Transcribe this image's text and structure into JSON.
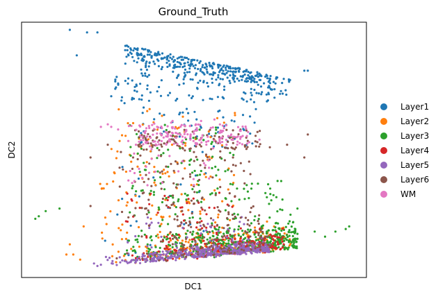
{
  "chart_data": {
    "type": "scatter",
    "title": "Ground_Truth",
    "xlabel": "DC1",
    "ylabel": "DC2",
    "grid": false,
    "show_ticks": false,
    "legend_position": "right",
    "xlim": [
      0,
      100
    ],
    "ylim": [
      0,
      100
    ],
    "series": [
      {
        "name": "Layer1",
        "color": "#1f77b4",
        "count": 520,
        "clusters": [
          {
            "weight": 0.62,
            "kind": "band",
            "x": [
              30,
              78
            ],
            "yTop": [
              91,
              78
            ],
            "spread": 3.5
          },
          {
            "weight": 0.2,
            "kind": "box",
            "x": [
              26,
              72
            ],
            "y": [
              68,
              80
            ]
          },
          {
            "weight": 0.12,
            "kind": "box",
            "x": [
              34,
              68
            ],
            "y": [
              50,
              68
            ]
          },
          {
            "weight": 0.06,
            "kind": "box",
            "x": [
              24,
              56
            ],
            "y": [
              8,
              50
            ]
          }
        ],
        "outliers": [
          [
            14,
            97
          ],
          [
            16,
            87
          ],
          [
            19,
            96
          ],
          [
            22,
            96
          ],
          [
            82,
            81
          ],
          [
            83,
            81
          ],
          [
            28,
            76
          ],
          [
            26,
            71
          ]
        ]
      },
      {
        "name": "Layer2",
        "color": "#ff7f0e",
        "count": 330,
        "clusters": [
          {
            "weight": 0.55,
            "kind": "floor",
            "x": [
              22,
              78
            ],
            "spread": 7
          },
          {
            "weight": 0.25,
            "kind": "box",
            "x": [
              22,
              62
            ],
            "y": [
              15,
              45
            ]
          },
          {
            "weight": 0.2,
            "kind": "box",
            "x": [
              26,
              62
            ],
            "y": [
              40,
              66
            ]
          }
        ],
        "outliers": [
          [
            13,
            9
          ],
          [
            15,
            9
          ],
          [
            14,
            13
          ],
          [
            17,
            7
          ],
          [
            18,
            20
          ]
        ]
      },
      {
        "name": "Layer3",
        "color": "#2ca02c",
        "count": 620,
        "clusters": [
          {
            "weight": 0.72,
            "kind": "floor",
            "x": [
              28,
              80
            ],
            "spread": 8
          },
          {
            "weight": 0.18,
            "kind": "box",
            "x": [
              30,
              76
            ],
            "y": [
              14,
              38
            ]
          },
          {
            "weight": 0.1,
            "kind": "box",
            "x": [
              30,
              62
            ],
            "y": [
              38,
              60
            ]
          }
        ],
        "outliers": [
          [
            4,
            23
          ],
          [
            5,
            24
          ],
          [
            7,
            26
          ],
          [
            11,
            27
          ],
          [
            85,
            18
          ],
          [
            88,
            16
          ],
          [
            91,
            18
          ],
          [
            94,
            19
          ],
          [
            95,
            20
          ],
          [
            80,
            27
          ]
        ]
      },
      {
        "name": "Layer4",
        "color": "#d62728",
        "count": 260,
        "clusters": [
          {
            "weight": 0.8,
            "kind": "floor",
            "x": [
              26,
              76
            ],
            "spread": 5
          },
          {
            "weight": 0.2,
            "kind": "box",
            "x": [
              28,
              62
            ],
            "y": [
              14,
              34
            ]
          }
        ],
        "outliers": []
      },
      {
        "name": "Layer5",
        "color": "#9467bd",
        "count": 520,
        "clusters": [
          {
            "weight": 0.92,
            "kind": "floor",
            "x": [
              22,
              72
            ],
            "spread": 2.5
          },
          {
            "weight": 0.08,
            "kind": "box",
            "x": [
              30,
              66
            ],
            "y": [
              10,
              24
            ]
          }
        ],
        "outliers": [
          [
            22,
            4.5
          ],
          [
            23,
            5
          ],
          [
            21,
            5.5
          ]
        ]
      },
      {
        "name": "Layer6",
        "color": "#8c564b",
        "count": 330,
        "clusters": [
          {
            "weight": 0.3,
            "kind": "box",
            "x": [
              32,
              70
            ],
            "y": [
              50,
              58
            ]
          },
          {
            "weight": 0.35,
            "kind": "box",
            "x": [
              28,
              68
            ],
            "y": [
              20,
              50
            ]
          },
          {
            "weight": 0.35,
            "kind": "floor",
            "x": [
              26,
              72
            ],
            "spread": 10
          }
        ],
        "outliers": [
          [
            20,
            47
          ],
          [
            25,
            52
          ],
          [
            20,
            28
          ],
          [
            82,
            47
          ],
          [
            77,
            52
          ],
          [
            72,
            51
          ],
          [
            83,
            56
          ]
        ]
      },
      {
        "name": "WM",
        "color": "#e377c2",
        "count": 190,
        "clusters": [
          {
            "weight": 0.75,
            "kind": "box",
            "x": [
              34,
              66
            ],
            "y": [
              52,
              60
            ]
          },
          {
            "weight": 0.25,
            "kind": "box",
            "x": [
              30,
              56
            ],
            "y": [
              36,
              62
            ]
          }
        ],
        "outliers": [
          [
            23,
            59
          ],
          [
            25,
            60
          ],
          [
            26,
            59
          ],
          [
            28,
            58
          ],
          [
            37,
            41
          ],
          [
            35,
            39
          ],
          [
            69,
            54
          ],
          [
            66,
            53
          ]
        ]
      }
    ]
  }
}
